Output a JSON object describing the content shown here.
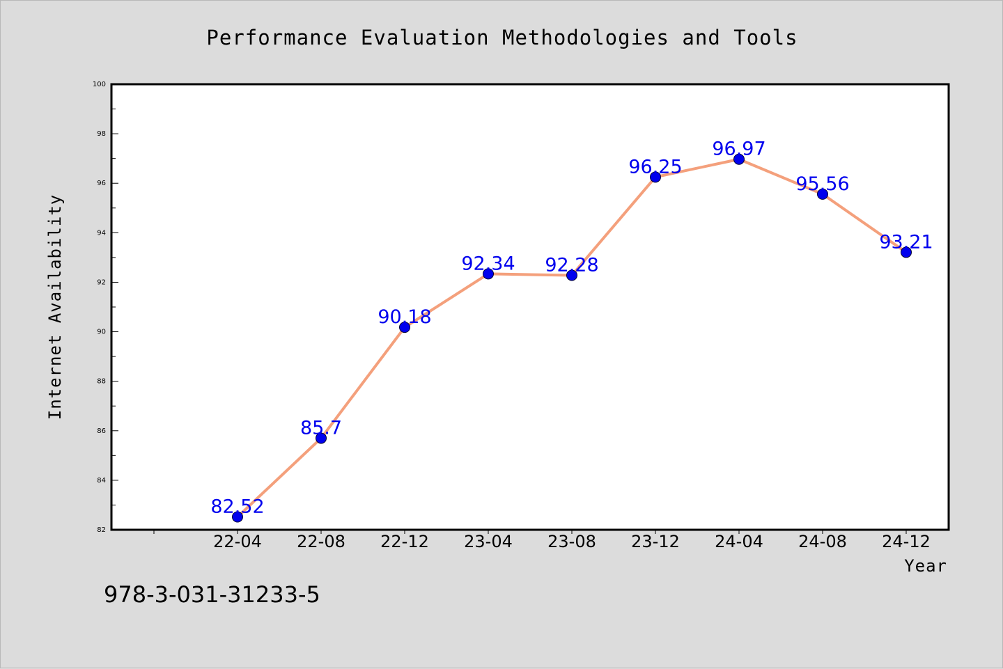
{
  "chart_data": {
    "type": "line",
    "title": "Performance Evaluation Methodologies and Tools",
    "xlabel": "Year",
    "ylabel": "Internet Availability",
    "categories": [
      "22-04",
      "22-08",
      "22-12",
      "23-04",
      "23-08",
      "23-12",
      "24-04",
      "24-08",
      "24-12"
    ],
    "series": [
      {
        "values": [
          82.52,
          85.7,
          90.18,
          92.34,
          92.28,
          96.25,
          96.97,
          95.56,
          93.21
        ]
      }
    ],
    "data_labels": [
      "82.52",
      "85.7",
      "90.18",
      "92.34",
      "92.28",
      "96.25",
      "96.97",
      "95.56",
      "93.21"
    ],
    "ylim": [
      82,
      100
    ],
    "yticks": [
      "82",
      "84",
      "86",
      "88",
      "90",
      "92",
      "94",
      "96",
      "98",
      "100"
    ],
    "grid": false,
    "legend": "none",
    "colors": {
      "line": "#f4a07c",
      "marker": "#0000ee",
      "label": "#0000ee"
    }
  },
  "footer_text": "978-3-031-31233-5"
}
